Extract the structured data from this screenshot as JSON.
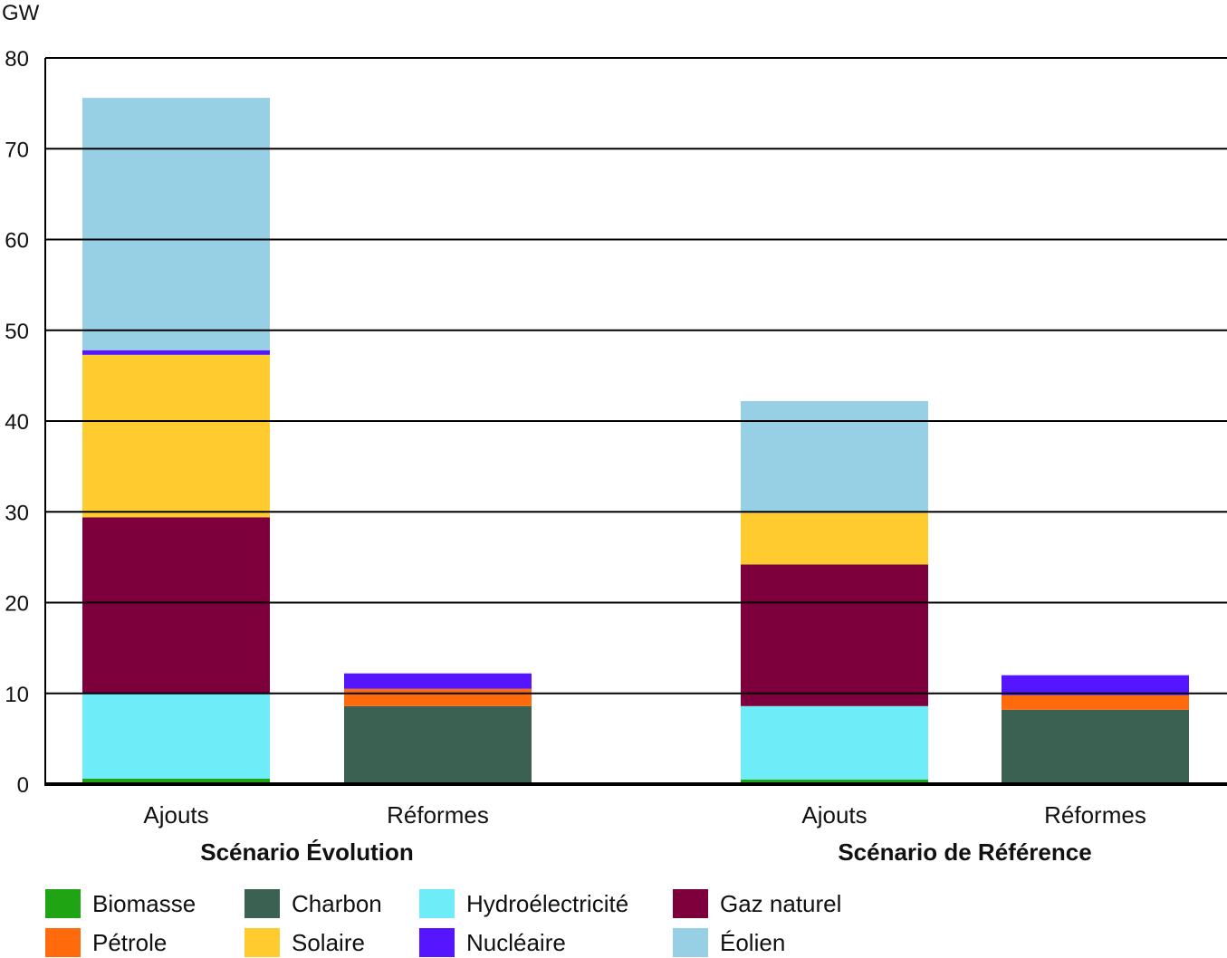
{
  "chart_data": {
    "type": "bar",
    "stacked": true,
    "ylabel": "GW",
    "ylim": [
      0,
      80
    ],
    "yticks": [
      0,
      10,
      20,
      30,
      40,
      50,
      60,
      70,
      80
    ],
    "grid": true,
    "legend_position": "bottom",
    "groups": [
      {
        "label": "Scénario Évolution",
        "categories": [
          "Ajouts",
          "Réformes"
        ]
      },
      {
        "label": "Scénario de Référence",
        "categories": [
          "Ajouts",
          "Réformes"
        ]
      }
    ],
    "series": [
      {
        "name": "Biomasse",
        "color": "#1fa514",
        "values": [
          0.6,
          0,
          0.5,
          0
        ]
      },
      {
        "name": "Charbon",
        "color": "#3a6152",
        "values": [
          0,
          8.6,
          0,
          8.2
        ]
      },
      {
        "name": "Hydroélectricité",
        "color": "#6eedf8",
        "values": [
          9.4,
          0,
          8.1,
          0
        ]
      },
      {
        "name": "Gaz naturel",
        "color": "#7d003c",
        "values": [
          19.4,
          0,
          15.6,
          0
        ]
      },
      {
        "name": "Pétrole",
        "color": "#ff6a0d",
        "values": [
          0,
          1.9,
          0,
          1.6
        ]
      },
      {
        "name": "Solaire",
        "color": "#ffcb2f",
        "values": [
          17.9,
          0,
          5.7,
          0
        ]
      },
      {
        "name": "Nucléaire",
        "color": "#5615ff",
        "values": [
          0.5,
          1.7,
          0,
          2.2
        ]
      },
      {
        "name": "Éolien",
        "color": "#97cfe4",
        "values": [
          27.8,
          0,
          12.3,
          0
        ]
      }
    ]
  }
}
